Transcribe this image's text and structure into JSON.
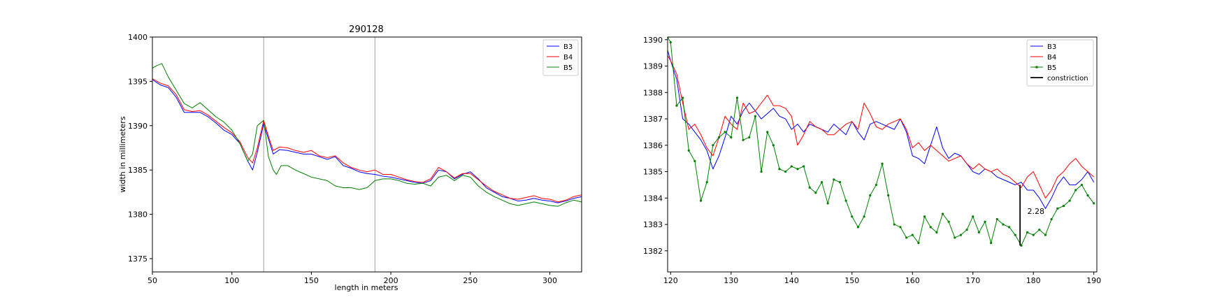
{
  "chart_data": [
    {
      "type": "line",
      "title": "290128",
      "xlabel": "length in meters",
      "ylabel": "width in millimeters",
      "xlim": [
        50,
        320
      ],
      "ylim": [
        1373.5,
        1400
      ],
      "xticks": [
        50,
        100,
        150,
        200,
        250,
        300
      ],
      "yticks": [
        1375,
        1380,
        1385,
        1390,
        1395,
        1400
      ],
      "grid": false,
      "legend_position": "top-right",
      "vlines": [
        120,
        190
      ],
      "series": [
        {
          "name": "B3",
          "color": "#0000ff",
          "x": [
            50,
            55,
            60,
            65,
            70,
            75,
            80,
            85,
            90,
            95,
            100,
            105,
            110,
            113,
            116,
            120,
            123,
            126,
            130,
            135,
            140,
            145,
            150,
            155,
            160,
            165,
            170,
            175,
            180,
            185,
            190,
            195,
            200,
            205,
            210,
            215,
            220,
            225,
            230,
            235,
            240,
            245,
            250,
            255,
            260,
            265,
            270,
            275,
            280,
            285,
            290,
            295,
            300,
            305,
            310,
            315,
            320
          ],
          "y": [
            1395.2,
            1394.6,
            1394.3,
            1393.2,
            1391.5,
            1391.5,
            1391.5,
            1391.0,
            1390.3,
            1389.5,
            1389.0,
            1388.0,
            1386.0,
            1385.0,
            1387.0,
            1390.2,
            1388.5,
            1386.8,
            1387.3,
            1387.2,
            1387.0,
            1386.8,
            1386.8,
            1386.5,
            1386.2,
            1386.5,
            1385.5,
            1385.2,
            1384.8,
            1384.6,
            1384.5,
            1384.3,
            1384.2,
            1384.0,
            1383.8,
            1383.6,
            1383.5,
            1383.8,
            1385.0,
            1384.8,
            1384.0,
            1384.5,
            1384.8,
            1384.0,
            1383.0,
            1382.5,
            1382.0,
            1381.8,
            1381.5,
            1381.6,
            1381.8,
            1381.6,
            1381.5,
            1381.3,
            1381.5,
            1381.8,
            1382.0
          ]
        },
        {
          "name": "B4",
          "color": "#ff0000",
          "x": [
            50,
            55,
            60,
            65,
            70,
            75,
            80,
            85,
            90,
            95,
            100,
            105,
            110,
            113,
            116,
            120,
            123,
            126,
            130,
            135,
            140,
            145,
            150,
            155,
            160,
            165,
            170,
            175,
            180,
            185,
            190,
            195,
            200,
            205,
            210,
            215,
            220,
            225,
            230,
            235,
            240,
            245,
            250,
            255,
            260,
            265,
            270,
            275,
            280,
            285,
            290,
            295,
            300,
            305,
            310,
            315,
            320
          ],
          "y": [
            1395.3,
            1394.8,
            1394.5,
            1393.5,
            1391.8,
            1391.6,
            1391.7,
            1391.2,
            1390.5,
            1389.8,
            1389.2,
            1388.2,
            1386.4,
            1385.8,
            1387.5,
            1390.6,
            1388.8,
            1387.2,
            1387.6,
            1387.5,
            1387.2,
            1387.0,
            1387.2,
            1386.6,
            1386.4,
            1386.6,
            1385.8,
            1385.3,
            1385.0,
            1384.8,
            1385.0,
            1384.5,
            1384.5,
            1384.2,
            1383.9,
            1383.7,
            1383.6,
            1384.0,
            1385.3,
            1384.8,
            1384.1,
            1384.6,
            1384.6,
            1383.9,
            1383.2,
            1382.6,
            1382.2,
            1381.8,
            1381.7,
            1381.9,
            1382.1,
            1381.8,
            1381.7,
            1381.4,
            1381.6,
            1382.0,
            1382.2
          ]
        },
        {
          "name": "B5",
          "color": "#008000",
          "x": [
            50,
            53,
            56,
            60,
            65,
            70,
            75,
            80,
            85,
            90,
            95,
            100,
            105,
            110,
            113,
            116,
            120,
            123,
            126,
            128,
            131,
            135,
            140,
            145,
            150,
            155,
            160,
            165,
            170,
            175,
            180,
            185,
            190,
            195,
            200,
            205,
            210,
            215,
            220,
            225,
            230,
            235,
            240,
            245,
            250,
            255,
            260,
            265,
            270,
            275,
            280,
            285,
            290,
            295,
            300,
            305,
            310,
            315,
            320
          ],
          "y": [
            1396.5,
            1396.8,
            1397.0,
            1395.5,
            1394.0,
            1392.5,
            1392.0,
            1392.6,
            1391.8,
            1391.0,
            1390.4,
            1389.5,
            1388.0,
            1386.0,
            1386.8,
            1390.0,
            1390.6,
            1386.5,
            1385.0,
            1384.5,
            1385.5,
            1385.5,
            1385.0,
            1384.6,
            1384.2,
            1384.0,
            1383.8,
            1383.2,
            1383.0,
            1383.0,
            1382.8,
            1383.0,
            1383.8,
            1384.0,
            1384.0,
            1383.8,
            1383.5,
            1383.4,
            1383.5,
            1383.2,
            1384.2,
            1384.4,
            1383.8,
            1384.4,
            1384.2,
            1383.2,
            1382.5,
            1382.0,
            1381.6,
            1381.2,
            1381.0,
            1381.2,
            1381.4,
            1381.2,
            1381.0,
            1380.9,
            1381.3,
            1381.6,
            1381.4
          ]
        }
      ]
    },
    {
      "type": "line",
      "title": "",
      "xlabel": "",
      "ylabel": "",
      "xlim": [
        119.5,
        190.5
      ],
      "ylim": [
        1381.2,
        1390.1
      ],
      "xticks": [
        120,
        130,
        140,
        150,
        160,
        170,
        180,
        190
      ],
      "yticks": [
        1382,
        1383,
        1384,
        1385,
        1386,
        1387,
        1388,
        1389,
        1390
      ],
      "grid": false,
      "legend_position": "top-right",
      "series": [
        {
          "name": "B3",
          "color": "#0000ff",
          "x": [
            119.5,
            120,
            121,
            122,
            123,
            124,
            125,
            126,
            127,
            128,
            129,
            130,
            131,
            132,
            133,
            134,
            135,
            136,
            137,
            138,
            139,
            140,
            141,
            142,
            143,
            144,
            145,
            146,
            147,
            148,
            149,
            150,
            151,
            152,
            153,
            154,
            155,
            156,
            157,
            158,
            159,
            160,
            161,
            162,
            163,
            164,
            165,
            166,
            167,
            168,
            169,
            170,
            171,
            172,
            173,
            174,
            175,
            176,
            177,
            178,
            179,
            180,
            181,
            182,
            183,
            184,
            185,
            186,
            187,
            188,
            189,
            190
          ],
          "y": [
            1389.6,
            1389.2,
            1388.5,
            1387.0,
            1386.8,
            1386.5,
            1386.2,
            1385.8,
            1385.1,
            1385.6,
            1386.3,
            1387.1,
            1386.8,
            1387.3,
            1387.6,
            1387.3,
            1387.0,
            1387.2,
            1387.4,
            1387.1,
            1387.0,
            1386.6,
            1386.8,
            1386.5,
            1386.8,
            1386.7,
            1386.6,
            1386.5,
            1386.8,
            1386.6,
            1386.4,
            1386.9,
            1386.5,
            1386.2,
            1386.8,
            1386.9,
            1386.8,
            1386.7,
            1386.6,
            1387.0,
            1386.5,
            1385.6,
            1385.5,
            1385.3,
            1386.0,
            1386.7,
            1385.9,
            1385.5,
            1385.7,
            1385.6,
            1385.3,
            1385.0,
            1384.9,
            1385.1,
            1385.0,
            1384.8,
            1384.7,
            1384.6,
            1384.5,
            1384.6,
            1384.3,
            1384.3,
            1384.0,
            1383.6,
            1384.0,
            1384.5,
            1384.8,
            1384.5,
            1384.5,
            1384.7,
            1385.0,
            1384.6
          ]
        },
        {
          "name": "B4",
          "color": "#ff0000",
          "x": [
            119.5,
            120,
            121,
            122,
            123,
            124,
            125,
            126,
            127,
            128,
            129,
            130,
            131,
            132,
            133,
            134,
            135,
            136,
            137,
            138,
            139,
            140,
            141,
            142,
            143,
            144,
            145,
            146,
            147,
            148,
            149,
            150,
            151,
            152,
            153,
            154,
            155,
            156,
            157,
            158,
            159,
            160,
            161,
            162,
            163,
            164,
            165,
            166,
            167,
            168,
            169,
            170,
            171,
            172,
            173,
            174,
            175,
            176,
            177,
            178,
            179,
            180,
            181,
            182,
            183,
            184,
            185,
            186,
            187,
            188,
            189,
            190
          ],
          "y": [
            1389.4,
            1389.2,
            1388.7,
            1387.6,
            1386.6,
            1386.8,
            1386.4,
            1385.9,
            1385.6,
            1386.3,
            1387.1,
            1386.8,
            1386.6,
            1387.6,
            1387.2,
            1387.3,
            1387.6,
            1387.9,
            1387.5,
            1387.5,
            1387.4,
            1387.1,
            1386.0,
            1386.4,
            1386.9,
            1386.7,
            1386.6,
            1386.4,
            1386.4,
            1386.6,
            1386.8,
            1386.9,
            1386.6,
            1387.6,
            1387.2,
            1386.7,
            1386.6,
            1386.8,
            1386.9,
            1387.0,
            1386.6,
            1385.9,
            1386.1,
            1385.8,
            1386.0,
            1385.8,
            1385.6,
            1385.4,
            1385.5,
            1385.6,
            1385.3,
            1385.1,
            1385.3,
            1385.1,
            1385.0,
            1385.1,
            1384.9,
            1384.8,
            1384.6,
            1384.4,
            1384.8,
            1385.0,
            1384.5,
            1384.0,
            1384.3,
            1384.8,
            1385.0,
            1385.3,
            1385.5,
            1385.2,
            1385.0,
            1384.8
          ]
        },
        {
          "name": "B5",
          "color": "#008000",
          "x": [
            119.5,
            120,
            121,
            122,
            123,
            124,
            125,
            126,
            127,
            128,
            129,
            130,
            131,
            132,
            133,
            134,
            135,
            136,
            137,
            138,
            139,
            140,
            141,
            142,
            143,
            144,
            145,
            146,
            147,
            148,
            149,
            150,
            151,
            152,
            153,
            154,
            155,
            156,
            157,
            158,
            159,
            160,
            161,
            162,
            163,
            164,
            165,
            166,
            167,
            168,
            169,
            170,
            171,
            172,
            173,
            174,
            175,
            176,
            177,
            178,
            179,
            180,
            181,
            182,
            183,
            184,
            185,
            186,
            187,
            188,
            189,
            190
          ],
          "y": [
            1390.1,
            1389.9,
            1387.5,
            1387.8,
            1385.8,
            1385.4,
            1383.9,
            1384.6,
            1386.0,
            1386.3,
            1386.5,
            1386.3,
            1387.8,
            1386.2,
            1386.3,
            1387.1,
            1385.0,
            1386.5,
            1386.0,
            1385.1,
            1385.0,
            1385.2,
            1385.1,
            1385.2,
            1384.4,
            1384.2,
            1384.6,
            1383.8,
            1384.7,
            1384.6,
            1383.9,
            1383.3,
            1382.9,
            1383.3,
            1384.1,
            1384.5,
            1385.3,
            1384.1,
            1383.0,
            1382.9,
            1382.5,
            1382.6,
            1382.3,
            1383.3,
            1382.9,
            1382.7,
            1383.4,
            1383.1,
            1382.5,
            1382.6,
            1382.8,
            1383.3,
            1382.7,
            1383.1,
            1382.3,
            1383.2,
            1383.0,
            1382.9,
            1382.6,
            1382.2,
            1382.7,
            1382.6,
            1382.8,
            1382.6,
            1383.2,
            1383.6,
            1383.7,
            1383.9,
            1384.3,
            1384.5,
            1384.1,
            1383.8
          ]
        },
        {
          "name": "constriction",
          "color": "#000000",
          "x": [
            177.8,
            177.8
          ],
          "y": [
            1384.5,
            1382.2
          ]
        }
      ],
      "annotations": [
        {
          "text": "2.28",
          "x": 179,
          "y": 1383.5
        }
      ]
    }
  ]
}
